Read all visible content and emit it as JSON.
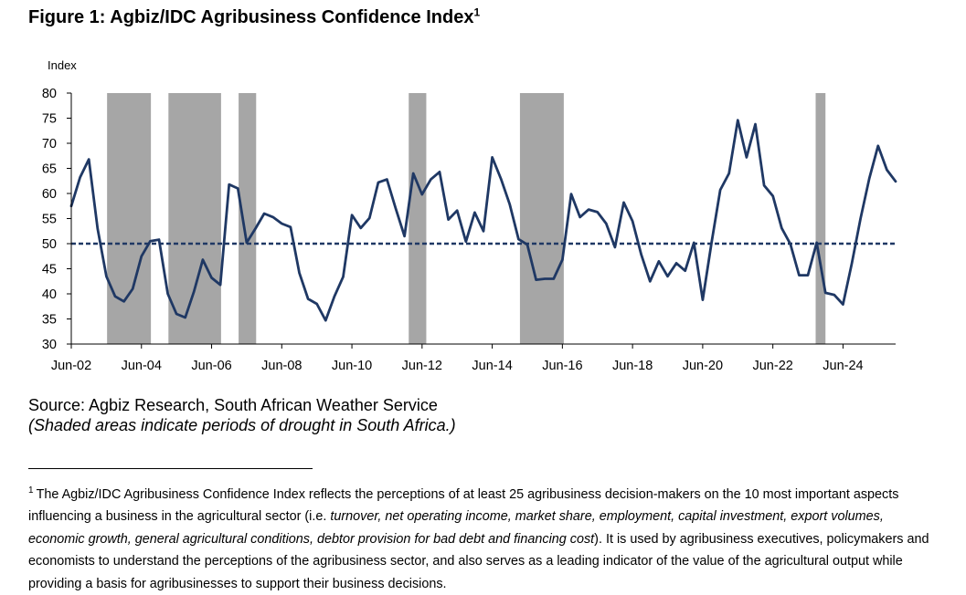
{
  "title": {
    "text": "Figure 1: Agbiz/IDC Agribusiness Confidence Index",
    "footnote_marker": "1"
  },
  "source": {
    "line1": "Source: Agbiz Research, South African Weather Service",
    "line2": "(Shaded areas indicate periods of drought in South Africa.)"
  },
  "footnote": {
    "marker": "1",
    "p1": "The Agbiz/IDC Agribusiness Confidence Index reflects the perceptions of at least 25 agribusiness decision-makers on the 10 most important aspects influencing a business in the agricultural sector (i.e. ",
    "p2_italic": "turnover, net operating income, market share, employment, capital investment, export volumes, economic growth, general agricultural conditions, debtor provision for bad debt and financing cost",
    "p3": "). It is used by agribusiness executives, policymakers and economists to understand the perceptions of the agribusiness sector, and also serves as a leading indicator of the value of the agricultural output while providing a basis for agribusinesses to support their business decisions."
  },
  "chart_data": {
    "type": "line",
    "title": "Figure 1: Agbiz/IDC Agribusiness Confidence Index",
    "ylabel": "Index",
    "xlabel": "",
    "ylim": [
      30,
      80
    ],
    "yticks": [
      30,
      35,
      40,
      45,
      50,
      55,
      60,
      65,
      70,
      75,
      80
    ],
    "x_range_years": [
      2002.42,
      2025.92
    ],
    "xticks": [
      {
        "label": "Jun-02",
        "year": 2002.42
      },
      {
        "label": "Jun-04",
        "year": 2004.42
      },
      {
        "label": "Jun-06",
        "year": 2006.42
      },
      {
        "label": "Jun-08",
        "year": 2008.42
      },
      {
        "label": "Jun-10",
        "year": 2010.42
      },
      {
        "label": "Jun-12",
        "year": 2012.42
      },
      {
        "label": "Jun-14",
        "year": 2014.42
      },
      {
        "label": "Jun-16",
        "year": 2016.42
      },
      {
        "label": "Jun-18",
        "year": 2018.42
      },
      {
        "label": "Jun-20",
        "year": 2020.42
      },
      {
        "label": "Jun-22",
        "year": 2022.42
      },
      {
        "label": "Jun-24",
        "year": 2024.42
      }
    ],
    "reference_line": {
      "value": 50,
      "style": "dashed",
      "color": "#1f3864"
    },
    "drought_periods": [
      [
        2003.44,
        2004.69
      ],
      [
        2005.19,
        2006.69
      ],
      [
        2007.19,
        2007.69
      ],
      [
        2012.04,
        2012.54
      ],
      [
        2015.21,
        2016.46
      ],
      [
        2023.64,
        2023.92
      ]
    ],
    "series": [
      {
        "color": "#1f3864",
        "points": [
          [
            2002.42,
            57.5
          ],
          [
            2002.67,
            63.2
          ],
          [
            2002.92,
            66.8
          ],
          [
            2003.17,
            53.0
          ],
          [
            2003.42,
            43.5
          ],
          [
            2003.67,
            39.5
          ],
          [
            2003.92,
            38.5
          ],
          [
            2004.17,
            41.0
          ],
          [
            2004.42,
            47.5
          ],
          [
            2004.67,
            50.5
          ],
          [
            2004.92,
            50.8
          ],
          [
            2005.17,
            40.0
          ],
          [
            2005.42,
            36.0
          ],
          [
            2005.67,
            35.3
          ],
          [
            2005.92,
            40.5
          ],
          [
            2006.17,
            46.8
          ],
          [
            2006.42,
            43.2
          ],
          [
            2006.67,
            41.8
          ],
          [
            2006.92,
            61.8
          ],
          [
            2007.17,
            61.0
          ],
          [
            2007.42,
            50.2
          ],
          [
            2007.67,
            53.0
          ],
          [
            2007.92,
            56.0
          ],
          [
            2008.17,
            55.3
          ],
          [
            2008.42,
            54.0
          ],
          [
            2008.67,
            53.3
          ],
          [
            2008.92,
            44.2
          ],
          [
            2009.17,
            39.0
          ],
          [
            2009.42,
            38.0
          ],
          [
            2009.67,
            34.7
          ],
          [
            2009.92,
            39.5
          ],
          [
            2010.17,
            43.4
          ],
          [
            2010.42,
            55.7
          ],
          [
            2010.67,
            53.1
          ],
          [
            2010.92,
            55.1
          ],
          [
            2011.17,
            62.2
          ],
          [
            2011.42,
            62.8
          ],
          [
            2011.67,
            57.0
          ],
          [
            2011.92,
            51.5
          ],
          [
            2012.17,
            64.0
          ],
          [
            2012.42,
            59.8
          ],
          [
            2012.67,
            62.8
          ],
          [
            2012.92,
            64.3
          ],
          [
            2013.17,
            54.8
          ],
          [
            2013.42,
            56.6
          ],
          [
            2013.67,
            50.4
          ],
          [
            2013.92,
            56.2
          ],
          [
            2014.17,
            52.5
          ],
          [
            2014.42,
            67.2
          ],
          [
            2014.67,
            62.9
          ],
          [
            2014.92,
            57.8
          ],
          [
            2015.17,
            50.9
          ],
          [
            2015.42,
            49.8
          ],
          [
            2015.67,
            42.8
          ],
          [
            2015.92,
            43.0
          ],
          [
            2016.17,
            43.0
          ],
          [
            2016.42,
            46.8
          ],
          [
            2016.67,
            59.9
          ],
          [
            2016.92,
            55.3
          ],
          [
            2017.17,
            56.8
          ],
          [
            2017.42,
            56.3
          ],
          [
            2017.67,
            54.0
          ],
          [
            2017.92,
            49.3
          ],
          [
            2018.17,
            58.2
          ],
          [
            2018.42,
            54.5
          ],
          [
            2018.67,
            47.8
          ],
          [
            2018.92,
            42.5
          ],
          [
            2019.17,
            46.5
          ],
          [
            2019.42,
            43.5
          ],
          [
            2019.67,
            46.1
          ],
          [
            2019.92,
            44.6
          ],
          [
            2020.17,
            50.2
          ],
          [
            2020.42,
            38.8
          ],
          [
            2020.67,
            50.1
          ],
          [
            2020.92,
            60.7
          ],
          [
            2021.17,
            64.0
          ],
          [
            2021.42,
            74.6
          ],
          [
            2021.67,
            67.2
          ],
          [
            2021.92,
            73.8
          ],
          [
            2022.17,
            61.6
          ],
          [
            2022.42,
            59.5
          ],
          [
            2022.67,
            53.1
          ],
          [
            2022.92,
            49.9
          ],
          [
            2023.17,
            43.7
          ],
          [
            2023.42,
            43.7
          ],
          [
            2023.67,
            50.2
          ],
          [
            2023.92,
            40.2
          ],
          [
            2024.17,
            39.8
          ],
          [
            2024.42,
            37.9
          ],
          [
            2024.67,
            46.0
          ],
          [
            2024.92,
            55.0
          ],
          [
            2025.17,
            63.0
          ],
          [
            2025.42,
            69.5
          ],
          [
            2025.67,
            64.7
          ],
          [
            2025.92,
            62.4
          ]
        ]
      }
    ]
  }
}
